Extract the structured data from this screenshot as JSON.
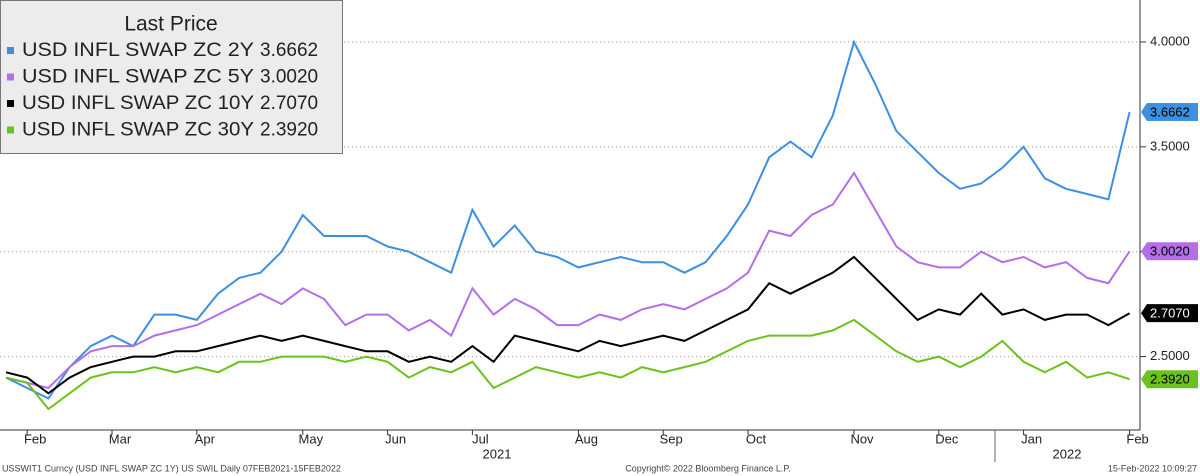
{
  "chart_data": {
    "type": "line",
    "legend_title": "Last Price",
    "categories": [
      null,
      "Feb",
      null,
      null,
      null,
      "Mar",
      null,
      null,
      null,
      "Apr",
      null,
      null,
      null,
      null,
      "May",
      null,
      null,
      null,
      "Jun",
      null,
      null,
      null,
      "Jul",
      null,
      null,
      null,
      null,
      "Aug",
      null,
      null,
      null,
      "Sep",
      null,
      null,
      null,
      "Oct",
      null,
      null,
      null,
      null,
      "Nov",
      null,
      null,
      null,
      "Dec",
      null,
      null,
      null,
      "Jan",
      null,
      null,
      null,
      null,
      "Feb"
    ],
    "year_labels": [
      "2021",
      "2022"
    ],
    "series": [
      {
        "name": "USD INFL SWAP ZC 2Y",
        "color": "#3d8fe0",
        "last_value_label": "3.6662",
        "values": [
          2.4,
          2.35,
          2.3,
          2.45,
          2.55,
          2.6,
          2.55,
          2.7,
          2.7,
          2.675,
          2.8,
          2.875,
          2.9,
          3.0,
          3.175,
          3.075,
          3.075,
          3.075,
          3.025,
          3.0,
          2.95,
          2.9,
          3.2,
          3.025,
          3.125,
          3.0,
          2.975,
          2.925,
          2.95,
          2.975,
          2.95,
          2.95,
          2.9,
          2.95,
          3.075,
          3.225,
          3.45,
          3.525,
          3.45,
          3.65,
          4.0,
          3.8,
          3.575,
          3.475,
          3.375,
          3.3,
          3.325,
          3.4,
          3.5,
          3.35,
          3.3,
          3.275,
          3.25,
          3.6662
        ]
      },
      {
        "name": "USD INFL SWAP ZC 5Y",
        "color": "#b36ee8",
        "last_value_label": "3.0020",
        "values": [
          2.4,
          2.375,
          2.35,
          2.45,
          2.525,
          2.55,
          2.55,
          2.6,
          2.625,
          2.65,
          2.7,
          2.75,
          2.8,
          2.75,
          2.825,
          2.775,
          2.65,
          2.7,
          2.7,
          2.625,
          2.675,
          2.6,
          2.825,
          2.7,
          2.775,
          2.725,
          2.65,
          2.65,
          2.7,
          2.675,
          2.725,
          2.75,
          2.725,
          2.775,
          2.825,
          2.9,
          3.1,
          3.075,
          3.175,
          3.225,
          3.375,
          3.2,
          3.025,
          2.95,
          2.925,
          2.925,
          3.0,
          2.95,
          2.975,
          2.925,
          2.95,
          2.875,
          2.85,
          3.002
        ]
      },
      {
        "name": "USD INFL SWAP ZC 10Y",
        "color": "#000000",
        "last_value_label": "2.7070",
        "values": [
          2.425,
          2.4,
          2.325,
          2.4,
          2.45,
          2.475,
          2.5,
          2.5,
          2.525,
          2.525,
          2.55,
          2.575,
          2.6,
          2.575,
          2.6,
          2.575,
          2.55,
          2.525,
          2.525,
          2.475,
          2.5,
          2.475,
          2.55,
          2.475,
          2.6,
          2.575,
          2.55,
          2.525,
          2.575,
          2.55,
          2.575,
          2.6,
          2.575,
          2.625,
          2.675,
          2.725,
          2.85,
          2.8,
          2.85,
          2.9,
          2.975,
          2.875,
          2.775,
          2.675,
          2.725,
          2.7,
          2.8,
          2.7,
          2.725,
          2.675,
          2.7,
          2.7,
          2.65,
          2.707
        ]
      },
      {
        "name": "USD INFL SWAP ZC 30Y",
        "color": "#6cc21c",
        "last_value_label": "2.3920",
        "values": [
          2.4,
          2.375,
          2.25,
          2.325,
          2.4,
          2.425,
          2.425,
          2.45,
          2.425,
          2.45,
          2.425,
          2.475,
          2.475,
          2.5,
          2.5,
          2.5,
          2.475,
          2.5,
          2.475,
          2.4,
          2.45,
          2.425,
          2.475,
          2.35,
          2.4,
          2.45,
          2.425,
          2.4,
          2.425,
          2.4,
          2.45,
          2.425,
          2.45,
          2.475,
          2.525,
          2.575,
          2.6,
          2.6,
          2.6,
          2.625,
          2.675,
          2.6,
          2.525,
          2.475,
          2.5,
          2.45,
          2.5,
          2.575,
          2.475,
          2.425,
          2.475,
          2.4,
          2.425,
          2.392
        ]
      }
    ],
    "ylim": [
      2.15,
      4.2
    ],
    "yticks": [
      {
        "value": 2.5,
        "label": "2.5000"
      },
      {
        "value": 3.0,
        "label": "3.0000"
      },
      {
        "value": 3.5,
        "label": "3.5000"
      },
      {
        "value": 4.0,
        "label": "4.0000"
      }
    ],
    "grid": true,
    "footer": {
      "left": "USSWIT1 Curncy (USD INFL SWAP ZC 1Y) US SWIL  Daily 07FEB2021-15FEB2022",
      "center": "Copyright© 2022 Bloomberg Finance L.P.",
      "right": "15-Feb-2022 10:09:27"
    }
  }
}
